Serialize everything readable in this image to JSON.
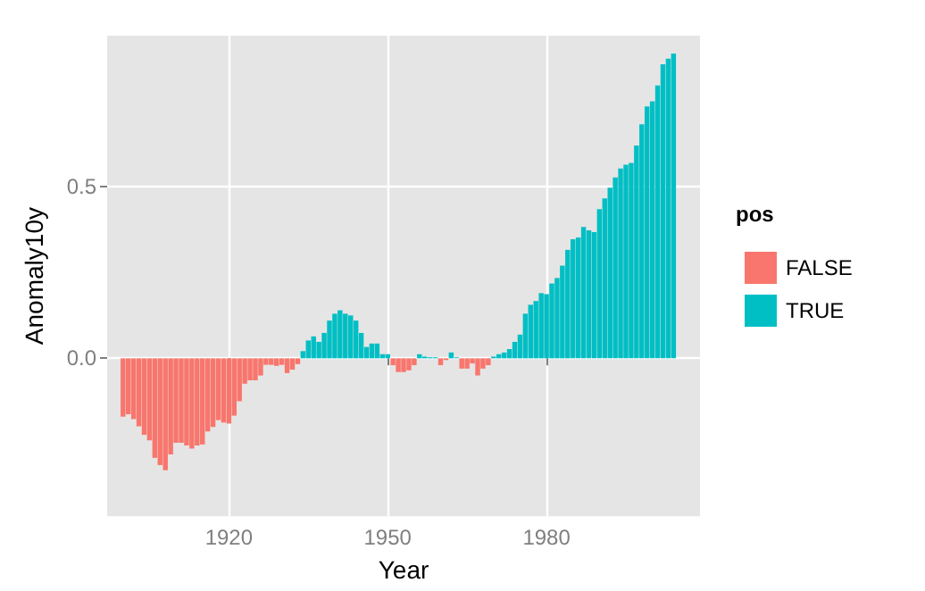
{
  "chart_data": {
    "type": "bar",
    "stacked": true,
    "xlabel": "Year",
    "ylabel": "Anomaly10y",
    "legend_title": "pos",
    "legend": "right",
    "grid": true,
    "x": [
      1900,
      1901,
      1902,
      1903,
      1904,
      1905,
      1906,
      1907,
      1908,
      1909,
      1910,
      1911,
      1912,
      1913,
      1914,
      1915,
      1916,
      1917,
      1918,
      1919,
      1920,
      1921,
      1922,
      1923,
      1924,
      1925,
      1926,
      1927,
      1928,
      1929,
      1930,
      1931,
      1932,
      1933,
      1934,
      1935,
      1936,
      1937,
      1938,
      1939,
      1940,
      1941,
      1942,
      1943,
      1944,
      1945,
      1946,
      1947,
      1948,
      1949,
      1950,
      1951,
      1952,
      1953,
      1954,
      1955,
      1956,
      1957,
      1958,
      1959,
      1960,
      1961,
      1962,
      1963,
      1964,
      1965,
      1966,
      1967,
      1968,
      1969,
      1970,
      1971,
      1972,
      1973,
      1974,
      1975,
      1976,
      1977,
      1978,
      1979,
      1980,
      1981,
      1982,
      1983,
      1984,
      1985,
      1986,
      1987,
      1988,
      1989,
      1990,
      1991,
      1992,
      1993,
      1994,
      1995,
      1996,
      1997,
      1998,
      1999,
      2000,
      2001,
      2002,
      2003,
      2004
    ],
    "series": [
      {
        "name": "FALSE",
        "color": "#f8766d",
        "values": [
          -0.17,
          -0.163,
          -0.177,
          -0.198,
          -0.223,
          -0.239,
          -0.29,
          -0.311,
          -0.326,
          -0.28,
          -0.246,
          -0.246,
          -0.254,
          -0.263,
          -0.254,
          -0.251,
          -0.213,
          -0.2,
          -0.18,
          -0.187,
          -0.19,
          -0.167,
          -0.125,
          -0.074,
          -0.064,
          -0.064,
          -0.05,
          -0.019,
          -0.019,
          -0.022,
          -0.019,
          -0.043,
          -0.033,
          -0.017,
          null,
          null,
          null,
          null,
          null,
          null,
          null,
          null,
          null,
          null,
          null,
          null,
          null,
          null,
          null,
          null,
          null,
          -0.02,
          -0.04,
          -0.04,
          -0.035,
          -0.02,
          null,
          null,
          null,
          null,
          -0.02,
          -0.005,
          null,
          null,
          -0.03,
          -0.03,
          -0.015,
          -0.05,
          -0.03,
          -0.02,
          null,
          null,
          null,
          null,
          null,
          null,
          null,
          null,
          null,
          null,
          null,
          null,
          null,
          null,
          null,
          null,
          null,
          null,
          null,
          null,
          null,
          null,
          null,
          null,
          null,
          null,
          null,
          null,
          null,
          null,
          null,
          null,
          null,
          null,
          null
        ]
      },
      {
        "name": "TRUE",
        "color": "#00bfc4",
        "values": [
          null,
          null,
          null,
          null,
          null,
          null,
          null,
          null,
          null,
          null,
          null,
          null,
          null,
          null,
          null,
          null,
          null,
          null,
          null,
          null,
          null,
          null,
          null,
          null,
          null,
          null,
          null,
          null,
          null,
          null,
          null,
          null,
          null,
          null,
          0.021,
          0.052,
          0.064,
          0.048,
          0.074,
          0.11,
          0.13,
          0.14,
          0.13,
          0.125,
          0.11,
          0.074,
          0.033,
          0.043,
          0.043,
          0.012,
          0.012,
          null,
          null,
          null,
          null,
          null,
          0.012,
          0.005,
          0.003,
          0.003,
          null,
          null,
          0.017,
          0.003,
          null,
          null,
          null,
          null,
          null,
          null,
          0.005,
          0.012,
          0.017,
          0.027,
          0.048,
          0.069,
          0.13,
          0.156,
          0.167,
          0.19,
          0.187,
          0.218,
          0.234,
          0.27,
          0.316,
          0.347,
          0.352,
          0.383,
          0.373,
          0.368,
          0.435,
          0.466,
          0.497,
          0.527,
          0.553,
          0.564,
          0.569,
          0.62,
          0.682,
          0.734,
          0.749,
          0.795,
          0.857,
          0.873,
          0.888
        ]
      }
    ],
    "xlim": [
      1897,
      2009
    ],
    "xticks": [
      1920,
      1950,
      1980
    ],
    "ylim": [
      -0.46,
      0.94
    ],
    "yticks": [
      {
        "value": 0,
        "label": "0.0"
      },
      {
        "value": 0.5,
        "label": "0.5"
      }
    ]
  }
}
